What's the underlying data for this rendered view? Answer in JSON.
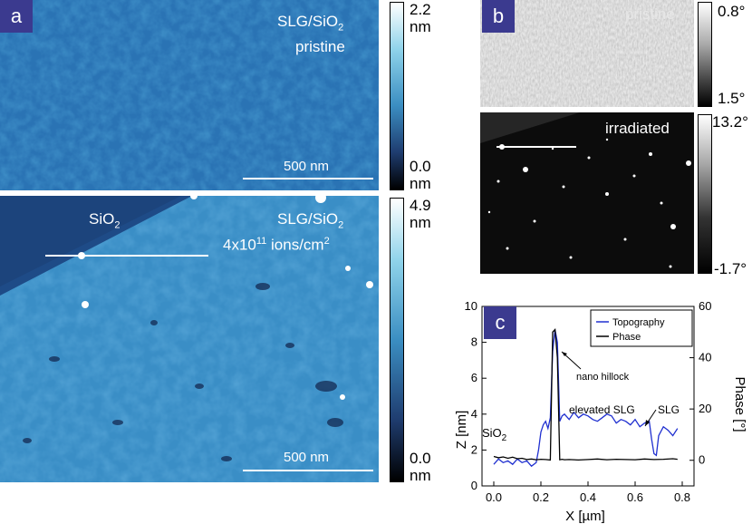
{
  "panel_a": {
    "letter": "a",
    "top": {
      "sample": "SLG/SiO",
      "sample_sub": "2",
      "state": "pristine",
      "scale_label": "500 nm",
      "cbar_max": "2.2",
      "cbar_max_unit": "nm",
      "cbar_min": "0.0",
      "cbar_min_unit": "nm"
    },
    "bottom": {
      "region_label": "SiO",
      "region_label_sub": "2",
      "sample": "SLG/SiO",
      "sample_sub": "2",
      "fluence_pre": "4x10",
      "fluence_sup": "11",
      "fluence_post": " ions/cm",
      "fluence_sup2": "2",
      "scale_label": "500 nm",
      "cbar_max": "4.9",
      "cbar_max_unit": "nm",
      "cbar_min": "0.0",
      "cbar_min_unit": "nm"
    }
  },
  "panel_b": {
    "letter": "b",
    "top": {
      "label": "pristine",
      "cbar_max": "0.8°",
      "cbar_min": "1.5°"
    },
    "bottom": {
      "label": "irradiated",
      "cbar_max": "13.2°",
      "cbar_min": "-1.7°"
    }
  },
  "panel_c": {
    "letter": "c",
    "chart_data": {
      "type": "line",
      "xlabel": "X [µm]",
      "ylabel": "Z [nm]",
      "y2label": "Phase [°]",
      "xlim": [
        -0.05,
        0.85
      ],
      "ylim": [
        0,
        10
      ],
      "y2lim": [
        -10,
        60
      ],
      "xticks": [
        "0.0",
        "0.2",
        "0.4",
        "0.6",
        "0.8"
      ],
      "yticks": [
        "0",
        "2",
        "4",
        "6",
        "8",
        "10"
      ],
      "y2ticks": [
        "0",
        "20",
        "40",
        "60"
      ],
      "legend": [
        "Topography",
        "Phase"
      ],
      "annotations": {
        "sio2": "SiO",
        "sio2_sub": "2",
        "hillock": "nano hillock",
        "elevated": "elevated SLG",
        "slg": "SLG"
      },
      "series": [
        {
          "name": "Topography",
          "color": "#2030d0",
          "axis": "left",
          "x": [
            0.0,
            0.02,
            0.04,
            0.06,
            0.08,
            0.1,
            0.12,
            0.14,
            0.16,
            0.18,
            0.19,
            0.2,
            0.21,
            0.22,
            0.23,
            0.24,
            0.25,
            0.26,
            0.27,
            0.28,
            0.29,
            0.3,
            0.32,
            0.34,
            0.36,
            0.38,
            0.4,
            0.42,
            0.44,
            0.46,
            0.48,
            0.5,
            0.52,
            0.54,
            0.56,
            0.58,
            0.6,
            0.62,
            0.64,
            0.66,
            0.67,
            0.68,
            0.69,
            0.7,
            0.72,
            0.74,
            0.76,
            0.78
          ],
          "y": [
            1.2,
            1.5,
            1.3,
            1.4,
            1.2,
            1.5,
            1.3,
            1.4,
            1.1,
            1.3,
            2.0,
            3.0,
            3.4,
            3.6,
            3.2,
            3.8,
            7.5,
            8.7,
            8.0,
            3.6,
            3.9,
            4.0,
            3.7,
            4.1,
            3.8,
            4.0,
            3.9,
            3.7,
            3.6,
            3.8,
            4.0,
            3.9,
            3.5,
            3.7,
            3.6,
            3.4,
            3.7,
            3.3,
            3.5,
            3.6,
            2.6,
            1.8,
            1.7,
            2.8,
            3.3,
            3.1,
            2.8,
            3.2
          ]
        },
        {
          "name": "Phase",
          "color": "#000000",
          "axis": "right",
          "x": [
            0.0,
            0.02,
            0.04,
            0.06,
            0.08,
            0.1,
            0.12,
            0.14,
            0.16,
            0.18,
            0.2,
            0.22,
            0.24,
            0.25,
            0.26,
            0.27,
            0.28,
            0.29,
            0.3,
            0.32,
            0.36,
            0.4,
            0.44,
            0.48,
            0.52,
            0.56,
            0.6,
            0.64,
            0.68,
            0.72,
            0.76,
            0.78
          ],
          "y": [
            1.5,
            1.0,
            1.3,
            0.8,
            1.2,
            0.6,
            0.8,
            0.3,
            0.5,
            0.2,
            0.4,
            0.3,
            0.1,
            50.0,
            51.0,
            40.0,
            0.2,
            0.4,
            0.2,
            0.3,
            0.1,
            0.3,
            0.5,
            0.2,
            0.4,
            0.3,
            0.2,
            0.5,
            0.3,
            0.4,
            0.6,
            0.4
          ]
        }
      ]
    }
  }
}
